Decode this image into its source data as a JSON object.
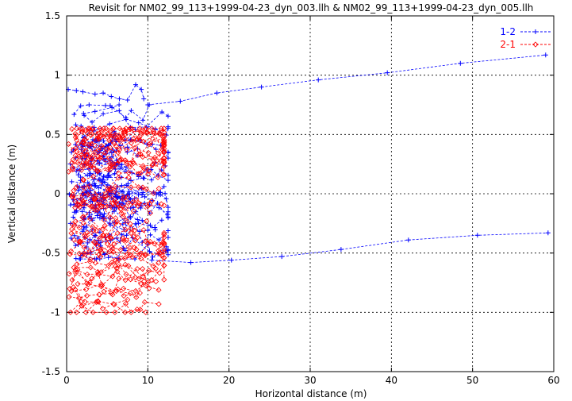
{
  "chart_data": {
    "type": "scatter",
    "title": "Revisit for NM02_99_113+1999-04-23_dyn_003.llh & NM02_99_113+1999-04-23_dyn_005.llh",
    "xlabel": "Horizontal distance (m)",
    "ylabel": "Vertical distance (m)",
    "xlim": [
      0,
      60
    ],
    "ylim": [
      -1.5,
      1.5
    ],
    "x_ticks": [
      "0",
      "10",
      "20",
      "30",
      "40",
      "50",
      "60"
    ],
    "y_ticks": [
      "1.5",
      "1",
      "0.5",
      "0",
      "-0.5",
      "-1",
      "-1.5"
    ],
    "grid": true,
    "legend_position": "top-right",
    "series": [
      {
        "name": "1-2",
        "color": "#0000ff",
        "marker": "plus",
        "line": "dashed",
        "upper_trace": [
          [
            10,
            0.75
          ],
          [
            14,
            0.78
          ],
          [
            18.5,
            0.85
          ],
          [
            24,
            0.9
          ],
          [
            31,
            0.96
          ],
          [
            39.5,
            1.02
          ],
          [
            48.5,
            1.1
          ],
          [
            59,
            1.17
          ]
        ],
        "lower_trace": [
          [
            10.5,
            -0.56
          ],
          [
            15.3,
            -0.58
          ],
          [
            20.3,
            -0.56
          ],
          [
            26.5,
            -0.53
          ],
          [
            33.8,
            -0.47
          ],
          [
            42.1,
            -0.39
          ],
          [
            50.6,
            -0.35
          ],
          [
            59.3,
            -0.33
          ]
        ],
        "cluster_upper_arm": [
          [
            0.2,
            0.88
          ],
          [
            1.2,
            0.87
          ],
          [
            2.0,
            0.86
          ],
          [
            3.5,
            0.84
          ],
          [
            4.5,
            0.85
          ],
          [
            5.5,
            0.82
          ],
          [
            6.5,
            0.8
          ],
          [
            7.5,
            0.79
          ],
          [
            8.5,
            0.92
          ],
          [
            9.2,
            0.88
          ],
          [
            9.5,
            0.8
          ]
        ],
        "cluster": {
          "x_range": [
            0.3,
            12.5
          ],
          "y_range": [
            -0.55,
            0.75
          ]
        }
      },
      {
        "name": "2-1",
        "color": "#ff0000",
        "marker": "diamond",
        "line": "dashed",
        "lower_arm": [
          [
            0.3,
            -0.87
          ],
          [
            1.5,
            -0.88
          ],
          [
            2.5,
            -0.86
          ],
          [
            4.0,
            -0.85
          ],
          [
            5.5,
            -0.84
          ],
          [
            7.0,
            -0.8
          ],
          [
            8.5,
            -0.82
          ],
          [
            10.0,
            -0.75
          ],
          [
            11.0,
            -0.74
          ]
        ],
        "cluster": {
          "x_range": [
            0.2,
            12.0
          ],
          "y_range": [
            -1.0,
            0.55
          ]
        }
      }
    ]
  }
}
